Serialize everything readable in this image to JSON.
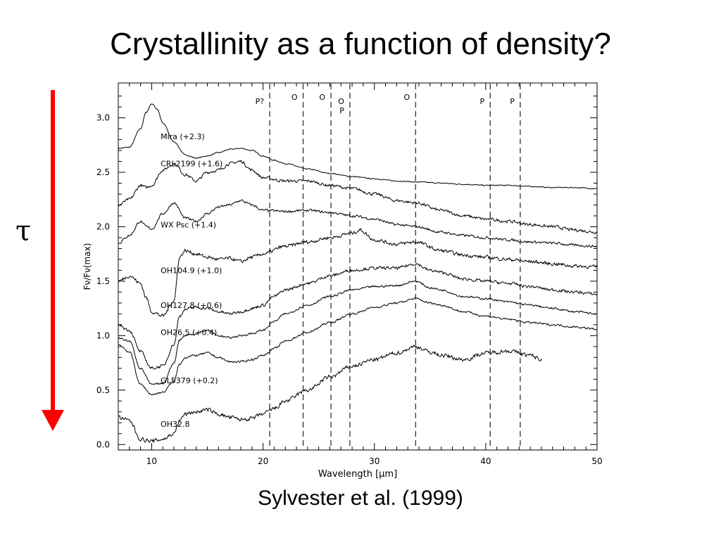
{
  "slide": {
    "title": "Crystallinity as a function of density?",
    "arrow_symbol": "τ",
    "arrow_color": "#ff0000",
    "citation": "Sylvester et al. (1999)"
  },
  "chart_data": {
    "type": "line",
    "xlabel": "Wavelength [μm]",
    "ylabel": "Fν/Fν(max)",
    "xlim": [
      7,
      50
    ],
    "ylim": [
      -0.05,
      3.32
    ],
    "xticks": [
      10,
      20,
      30,
      40,
      50
    ],
    "yticks": [
      0.0,
      0.5,
      1.0,
      1.5,
      2.0,
      2.5,
      3.0
    ],
    "ytick_labels": [
      "0.0",
      "0.5",
      "1.0",
      "1.5",
      "2.0",
      "2.5",
      "3.0"
    ],
    "grid": false,
    "feature_lines": [
      {
        "x": 20.6,
        "labels": [
          "P?"
        ]
      },
      {
        "x": 23.6,
        "labels": [
          "O"
        ]
      },
      {
        "x": 26.1,
        "labels": [
          "O"
        ]
      },
      {
        "x": 27.8,
        "labels": [
          "O",
          "P"
        ]
      },
      {
        "x": 33.7,
        "labels": [
          "O"
        ]
      },
      {
        "x": 40.4,
        "labels": [
          "P"
        ]
      },
      {
        "x": 43.1,
        "labels": [
          "P"
        ]
      }
    ],
    "series": [
      {
        "name": "Mira (+2.3)",
        "label_x": 10.8,
        "label_y": 2.83,
        "noise": 0.004,
        "x": [
          7,
          8,
          9,
          9.5,
          10,
          10.5,
          11,
          12,
          13,
          14,
          15,
          16,
          17,
          18,
          19,
          20,
          21,
          22,
          24,
          26,
          28,
          30,
          32,
          34,
          36,
          38,
          40,
          42,
          44,
          46,
          48,
          50
        ],
        "y": [
          2.72,
          2.73,
          2.9,
          3.05,
          3.13,
          3.08,
          2.95,
          2.78,
          2.66,
          2.63,
          2.65,
          2.68,
          2.71,
          2.72,
          2.7,
          2.65,
          2.61,
          2.58,
          2.53,
          2.49,
          2.46,
          2.44,
          2.42,
          2.41,
          2.4,
          2.39,
          2.38,
          2.38,
          2.37,
          2.36,
          2.36,
          2.35
        ]
      },
      {
        "name": "CRL2199 (+1.6)",
        "label_x": 10.8,
        "label_y": 2.58,
        "noise": 0.012,
        "x": [
          7,
          8,
          9,
          9.5,
          10,
          11,
          12,
          13,
          14,
          15,
          16,
          17,
          18,
          19,
          20,
          22,
          24,
          26,
          28,
          30,
          32,
          33.7,
          36,
          38,
          40,
          42,
          44,
          46,
          48,
          50
        ],
        "y": [
          2.2,
          2.25,
          2.38,
          2.36,
          2.38,
          2.52,
          2.58,
          2.48,
          2.42,
          2.5,
          2.52,
          2.58,
          2.6,
          2.52,
          2.45,
          2.42,
          2.42,
          2.38,
          2.35,
          2.3,
          2.24,
          2.22,
          2.15,
          2.1,
          2.07,
          2.05,
          2.02,
          2.0,
          1.97,
          1.95
        ]
      },
      {
        "name": "WX Psc (+1.4)",
        "label_x": 10.8,
        "label_y": 2.02,
        "noise": 0.01,
        "x": [
          7,
          8,
          9,
          9.5,
          10,
          11,
          12,
          13,
          14,
          15,
          16,
          17,
          18,
          19,
          20,
          22,
          24,
          26,
          28,
          30,
          32,
          33.7,
          36,
          38,
          40,
          42,
          44,
          46,
          48,
          50
        ],
        "y": [
          1.85,
          1.92,
          2.05,
          2.0,
          1.98,
          2.12,
          2.22,
          2.08,
          2.05,
          2.12,
          2.18,
          2.2,
          2.24,
          2.2,
          2.15,
          2.14,
          2.15,
          2.13,
          2.1,
          2.07,
          2.02,
          2.0,
          1.95,
          1.92,
          1.9,
          1.88,
          1.86,
          1.85,
          1.83,
          1.82
        ]
      },
      {
        "name": "OH104.9 (+1.0)",
        "label_x": 10.8,
        "label_y": 1.6,
        "noise": 0.014,
        "x": [
          7,
          8,
          9,
          9.5,
          10,
          11,
          12,
          12.5,
          13,
          14,
          15,
          16,
          17,
          18,
          19,
          20,
          22,
          24,
          26,
          28,
          28.7,
          30,
          32,
          33.7,
          36,
          38,
          40,
          42,
          44,
          46,
          48,
          50
        ],
        "y": [
          1.5,
          1.55,
          1.48,
          1.35,
          1.22,
          1.18,
          1.32,
          1.72,
          1.78,
          1.75,
          1.72,
          1.7,
          1.71,
          1.68,
          1.72,
          1.75,
          1.82,
          1.86,
          1.9,
          1.94,
          1.97,
          1.88,
          1.84,
          1.86,
          1.78,
          1.74,
          1.72,
          1.7,
          1.68,
          1.66,
          1.64,
          1.63
        ]
      },
      {
        "name": "OH127.8 (+0.6)",
        "label_x": 10.8,
        "label_y": 1.28,
        "noise": 0.012,
        "x": [
          7,
          8,
          9,
          10,
          11,
          12,
          12.5,
          13,
          14,
          15,
          16,
          17,
          18,
          19,
          20,
          21,
          22,
          24,
          26,
          28,
          30,
          32,
          33.7,
          35,
          36,
          38,
          40,
          42,
          44,
          46,
          48,
          50
        ],
        "y": [
          1.1,
          1.05,
          0.85,
          0.7,
          0.72,
          0.92,
          1.18,
          1.24,
          1.26,
          1.25,
          1.22,
          1.2,
          1.22,
          1.25,
          1.28,
          1.36,
          1.42,
          1.48,
          1.55,
          1.6,
          1.62,
          1.62,
          1.66,
          1.6,
          1.58,
          1.52,
          1.5,
          1.48,
          1.45,
          1.42,
          1.4,
          1.38
        ]
      },
      {
        "name": "OH26.5 (+0.4)",
        "label_x": 10.8,
        "label_y": 1.03,
        "noise": 0.008,
        "x": [
          7,
          8,
          9,
          10,
          11,
          12,
          12.5,
          13,
          14,
          15,
          16,
          17,
          18,
          19,
          20,
          21,
          22,
          24,
          26,
          28,
          30,
          32,
          33.7,
          35,
          36,
          38,
          40,
          42,
          44,
          46,
          48,
          50
        ],
        "y": [
          0.98,
          0.95,
          0.7,
          0.55,
          0.56,
          0.75,
          0.96,
          1.0,
          1.02,
          1.05,
          1.0,
          0.98,
          1.0,
          1.02,
          1.05,
          1.13,
          1.2,
          1.28,
          1.36,
          1.42,
          1.45,
          1.46,
          1.5,
          1.44,
          1.42,
          1.36,
          1.34,
          1.31,
          1.28,
          1.25,
          1.22,
          1.2
        ]
      },
      {
        "name": "GL5379 (+0.2)",
        "label_x": 10.8,
        "label_y": 0.59,
        "noise": 0.008,
        "x": [
          7,
          8,
          9,
          10,
          11,
          12,
          12.5,
          13,
          14,
          15,
          16,
          17,
          18,
          19,
          20,
          21,
          22,
          24,
          26,
          28,
          30,
          32,
          33.7,
          35,
          36,
          38,
          40,
          42,
          44,
          46,
          48,
          50
        ],
        "y": [
          0.92,
          0.85,
          0.55,
          0.46,
          0.48,
          0.58,
          0.74,
          0.8,
          0.82,
          0.84,
          0.8,
          0.76,
          0.76,
          0.78,
          0.82,
          0.88,
          0.95,
          1.03,
          1.12,
          1.2,
          1.26,
          1.3,
          1.34,
          1.3,
          1.28,
          1.22,
          1.18,
          1.15,
          1.12,
          1.1,
          1.08,
          1.06
        ]
      },
      {
        "name": "OH32.8",
        "label_x": 10.8,
        "label_y": 0.19,
        "noise": 0.016,
        "x": [
          7,
          8,
          9,
          10,
          11,
          12,
          12.5,
          13,
          14,
          15,
          16,
          17,
          18,
          19,
          20,
          21,
          22,
          24,
          26,
          28,
          30,
          32,
          33.7,
          35,
          36,
          38,
          40,
          42,
          44,
          45
        ],
        "y": [
          0.25,
          0.22,
          0.05,
          0.03,
          0.05,
          0.1,
          0.22,
          0.28,
          0.3,
          0.32,
          0.28,
          0.25,
          0.23,
          0.24,
          0.28,
          0.33,
          0.4,
          0.5,
          0.62,
          0.72,
          0.78,
          0.84,
          0.9,
          0.85,
          0.82,
          0.78,
          0.84,
          0.86,
          0.82,
          0.78
        ]
      }
    ]
  }
}
